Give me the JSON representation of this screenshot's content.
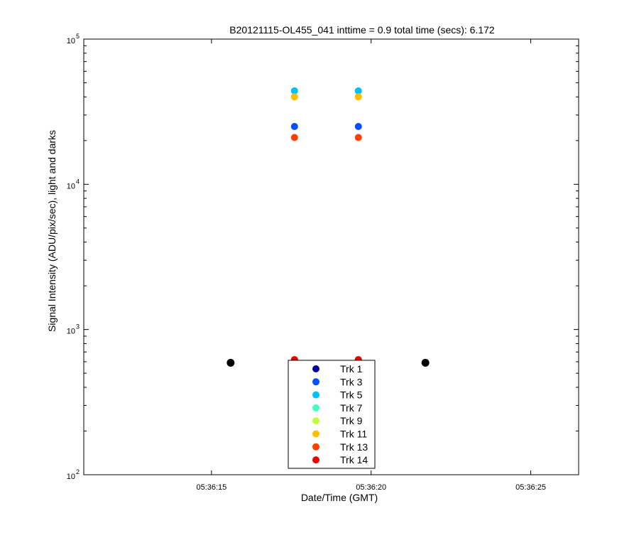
{
  "chart_data": {
    "type": "scatter",
    "title": "B20121115-OL455_041 inttime = 0.9 total time (secs): 6.172",
    "xlabel": "Date/Time (GMT)",
    "ylabel": "Signal Intensity (ADU/pix/sec), light and darks",
    "y_scale": "log",
    "ylim": [
      100,
      100000
    ],
    "xlim": [
      "05:36:11",
      "05:36:26.5"
    ],
    "x_ticks": [
      "05:36:15",
      "05:36:20",
      "05:36:25"
    ],
    "y_ticks": [
      {
        "base": "10",
        "exp": "2"
      },
      {
        "base": "10",
        "exp": "3"
      },
      {
        "base": "10",
        "exp": "4"
      },
      {
        "base": "10",
        "exp": "5"
      }
    ],
    "legend_position": "bottom-center",
    "series": [
      {
        "name": "Trk 1",
        "color": "#00009f",
        "x": [
          "05:36:17.6",
          "05:36:19.6"
        ],
        "y": [
          620,
          620
        ]
      },
      {
        "name": "Trk 3",
        "color": "#0050ff",
        "x": [
          "05:36:17.6",
          "05:36:19.6"
        ],
        "y": [
          25000,
          25000
        ]
      },
      {
        "name": "Trk 5",
        "color": "#00bfff",
        "x": [
          "05:36:17.6",
          "05:36:19.6"
        ],
        "y": [
          44000,
          44000
        ]
      },
      {
        "name": "Trk 7",
        "color": "#40ffbf",
        "x": [
          "05:36:17.6",
          "05:36:19.6"
        ],
        "y": [
          620,
          620
        ]
      },
      {
        "name": "Trk 9",
        "color": "#bfff40",
        "x": [
          "05:36:17.6",
          "05:36:19.6"
        ],
        "y": [
          620,
          620
        ]
      },
      {
        "name": "Trk 11",
        "color": "#ffbf00",
        "x": [
          "05:36:17.6",
          "05:36:19.6"
        ],
        "y": [
          40000,
          40000
        ]
      },
      {
        "name": "Trk 13",
        "color": "#ff4000",
        "x": [
          "05:36:17.6",
          "05:36:19.6"
        ],
        "y": [
          21000,
          21000
        ]
      },
      {
        "name": "Trk 14",
        "color": "#ef0000",
        "x": [
          "05:36:17.6",
          "05:36:19.6"
        ],
        "y": [
          620,
          620
        ]
      }
    ],
    "darks": {
      "color": "#000000",
      "x": [
        "05:36:15.6",
        "05:36:21.7"
      ],
      "y": [
        590,
        590
      ]
    }
  }
}
